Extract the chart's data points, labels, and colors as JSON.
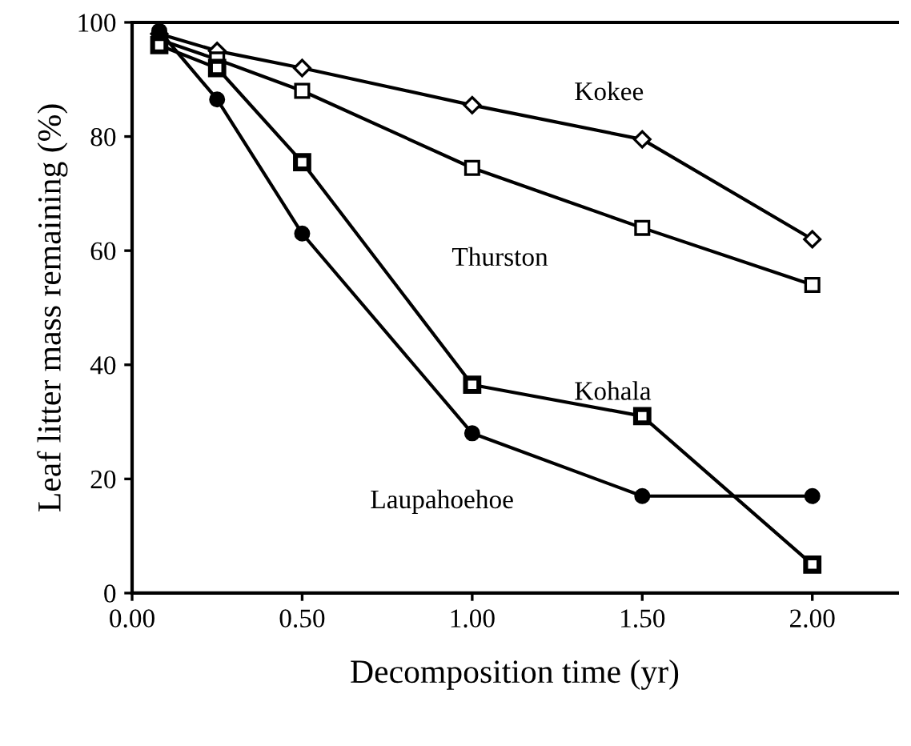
{
  "chart_data": {
    "type": "line",
    "xlabel": "Decomposition time (yr)",
    "ylabel": "Leaf litter mass remaining (%)",
    "xlim": [
      0,
      2.25
    ],
    "xticks": [
      {
        "value": 0,
        "label": "0.00"
      },
      {
        "value": 0.5,
        "label": "0.50"
      },
      {
        "value": 1,
        "label": "1.00"
      },
      {
        "value": 1.5,
        "label": "1.50"
      },
      {
        "value": 2,
        "label": "2.00"
      }
    ],
    "ylim": [
      0,
      100
    ],
    "yticks": [
      0,
      20,
      40,
      60,
      80,
      100
    ],
    "grid": false,
    "legend": false,
    "line_style": "solid",
    "series": [
      {
        "name": "Kokee",
        "color": "#000000",
        "marker": "diamond",
        "x": [
          0.08,
          0.25,
          0.5,
          1,
          1.5,
          2
        ],
        "values": [
          98,
          95,
          92,
          85.5,
          79.5,
          62
        ]
      },
      {
        "name": "Thurston",
        "color": "#000000",
        "marker": "square",
        "x": [
          0.08,
          0.25,
          0.5,
          1,
          1.5,
          2
        ],
        "values": [
          97,
          93.5,
          88,
          74.5,
          64,
          54
        ]
      },
      {
        "name": "Kohala",
        "color": "#000000",
        "marker": "square",
        "x": [
          0.08,
          0.25,
          0.5,
          1,
          1.5,
          2
        ],
        "values": [
          96,
          92,
          75.5,
          36.5,
          31,
          5
        ]
      },
      {
        "name": "Laupahoehoe",
        "color": "#000000",
        "marker": "circle",
        "x": [
          0.08,
          0.25,
          0.5,
          1,
          1.5,
          2
        ],
        "values": [
          98.5,
          86.5,
          63,
          28,
          17,
          17
        ]
      }
    ]
  }
}
